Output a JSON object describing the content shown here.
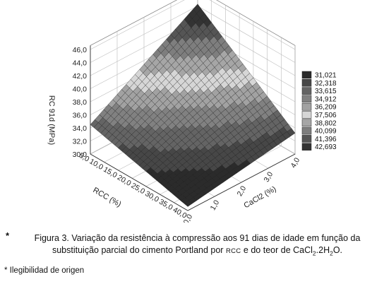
{
  "chart_data": {
    "type": "surface3d",
    "x_axis": {
      "label": "RCC (%)",
      "ticks": [
        "5,0",
        "10,0",
        "15,0",
        "20,0",
        "25,0",
        "30,0",
        "35,0",
        "40,0"
      ],
      "range": [
        5,
        40
      ]
    },
    "y_axis": {
      "label": "CaCl2 (%)",
      "ticks": [
        "0,0",
        "1,0",
        "2,0",
        "3,0",
        "4,0"
      ],
      "range": [
        0,
        4
      ]
    },
    "z_axis": {
      "label": "RC 91d (MPa)",
      "ticks": [
        "30,0",
        "32,0",
        "34,0",
        "36,0",
        "38,0",
        "40,0",
        "42,0",
        "44,0",
        "46,0"
      ],
      "range": [
        30,
        46
      ]
    },
    "surface_corners": [
      {
        "rcc": 5,
        "cacl2": 0,
        "rc": 34.5
      },
      {
        "rcc": 40,
        "cacl2": 0,
        "rc": 30.6
      },
      {
        "rcc": 5,
        "cacl2": 4,
        "rc": 44.3
      },
      {
        "rcc": 40,
        "cacl2": 4,
        "rc": 33.2
      }
    ],
    "legend": {
      "position": "right",
      "items": [
        "31,021",
        "32,318",
        "33,615",
        "34,912",
        "36,209",
        "37,506",
        "38,802",
        "40,099",
        "41,396",
        "42,693"
      ],
      "colors": [
        "#2b2b2b",
        "#474747",
        "#646464",
        "#818181",
        "#a2a2a2",
        "#d6d6d6",
        "#a6a6a6",
        "#7e7e7e",
        "#555555",
        "#333333"
      ]
    },
    "grid": true
  },
  "caption": {
    "marker": "*",
    "line1": "Figura 3. Variação da resistência à compressão aos 91 dias de idade em função da",
    "line2_a": "substituição parcial do cimento Portland por",
    "line2_sc": "RCC",
    "line2_b": "e do teor de CaCl",
    "line2_sub1": "2",
    "line2_c": ".2H",
    "line2_sub2": "2",
    "line2_d": "O."
  },
  "footnote": "* Ilegibilidad de origen"
}
